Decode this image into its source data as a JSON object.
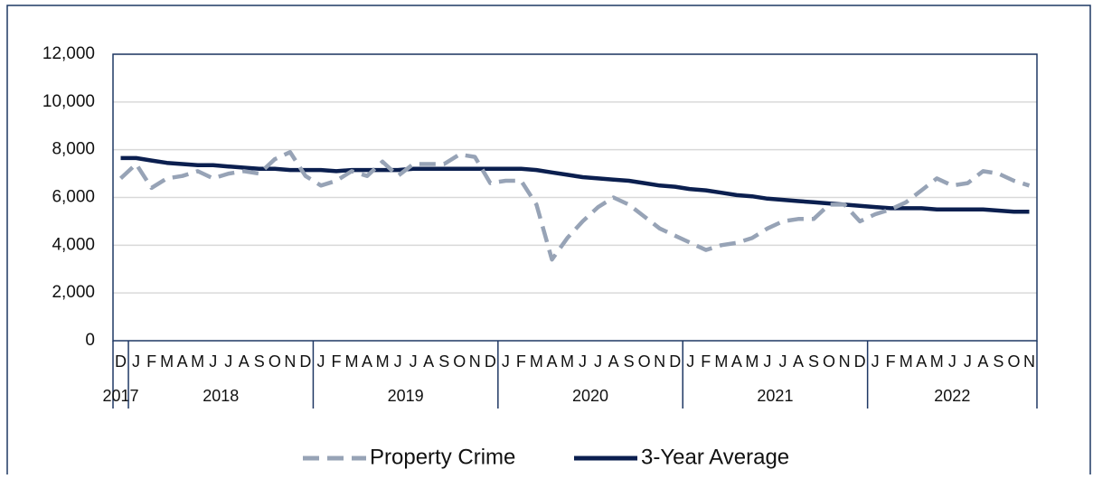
{
  "chart_data": {
    "type": "line",
    "categories": [
      "D",
      "J",
      "F",
      "M",
      "A",
      "M",
      "J",
      "J",
      "A",
      "S",
      "O",
      "N",
      "D",
      "J",
      "F",
      "M",
      "A",
      "M",
      "J",
      "J",
      "A",
      "S",
      "O",
      "N",
      "D",
      "J",
      "F",
      "M",
      "A",
      "M",
      "J",
      "J",
      "A",
      "S",
      "O",
      "N",
      "D",
      "J",
      "F",
      "M",
      "A",
      "M",
      "J",
      "J",
      "A",
      "S",
      "O",
      "N",
      "D",
      "J",
      "F",
      "M",
      "A",
      "M",
      "J",
      "J",
      "A",
      "S",
      "O",
      "N"
    ],
    "groups": [
      {
        "label": "2017",
        "size": 1
      },
      {
        "label": "2018",
        "size": 12
      },
      {
        "label": "2019",
        "size": 12
      },
      {
        "label": "2020",
        "size": 12
      },
      {
        "label": "2021",
        "size": 12
      },
      {
        "label": "2022",
        "size": 11
      }
    ],
    "series": [
      {
        "name": "Property Crime",
        "color": "#97a3b6",
        "dashed": true,
        "values": [
          6800,
          7400,
          6400,
          6800,
          6900,
          7100,
          6800,
          7000,
          7100,
          7000,
          7600,
          7900,
          6900,
          6500,
          6700,
          7100,
          6900,
          7500,
          6900,
          7400,
          7400,
          7400,
          7800,
          7700,
          6600,
          6700,
          6700,
          5700,
          3400,
          4300,
          5000,
          5600,
          6000,
          5700,
          5200,
          4700,
          4400,
          4100,
          3800,
          4000,
          4100,
          4300,
          4700,
          5000,
          5100,
          5100,
          5700,
          5700,
          5000,
          5300,
          5500,
          5800,
          6300,
          6800,
          6500,
          6600,
          7100,
          7000,
          6700,
          6500
        ]
      },
      {
        "name": "3-Year Average",
        "color": "#0b1f4f",
        "dashed": false,
        "values": [
          7650,
          7650,
          7550,
          7450,
          7400,
          7350,
          7350,
          7300,
          7250,
          7200,
          7200,
          7150,
          7150,
          7150,
          7100,
          7150,
          7150,
          7150,
          7150,
          7200,
          7200,
          7200,
          7200,
          7200,
          7200,
          7200,
          7200,
          7150,
          7050,
          6950,
          6850,
          6800,
          6750,
          6700,
          6600,
          6500,
          6450,
          6350,
          6300,
          6200,
          6100,
          6050,
          5950,
          5900,
          5850,
          5800,
          5750,
          5700,
          5650,
          5600,
          5550,
          5550,
          5550,
          5500,
          5500,
          5500,
          5500,
          5450,
          5400,
          5400
        ]
      }
    ],
    "ylim": [
      0,
      12000
    ],
    "yticks": [
      0,
      {
        "value": 2000,
        "label": "2,000"
      },
      {
        "value": 4000,
        "label": "4,000"
      },
      {
        "value": 6000,
        "label": "6,000"
      },
      {
        "value": 8000,
        "label": "8,000"
      },
      {
        "value": 10000,
        "label": "10,000"
      },
      {
        "value": 12000,
        "label": "12,000"
      }
    ],
    "grid": true,
    "legend": "bottom"
  }
}
